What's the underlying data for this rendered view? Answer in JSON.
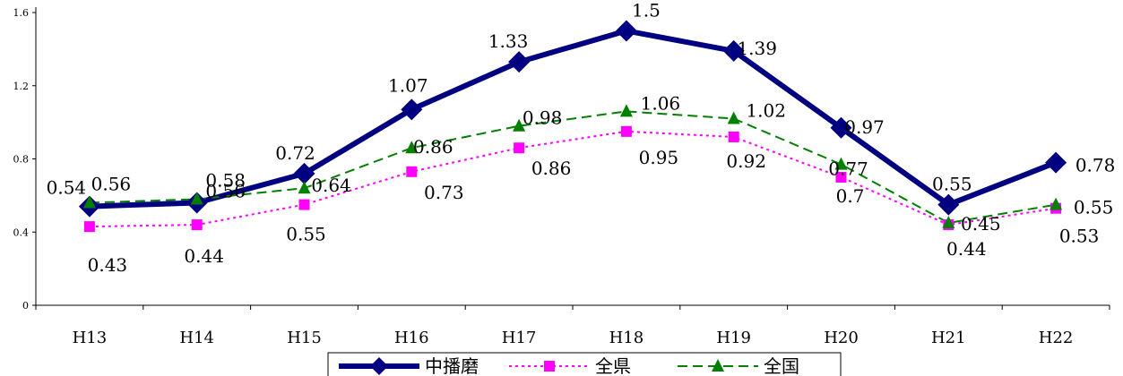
{
  "chart_data": {
    "type": "line",
    "title": "",
    "xlabel": "",
    "ylabel": "",
    "categories": [
      "H13",
      "H14",
      "H15",
      "H16",
      "H17",
      "H18",
      "H19",
      "H20",
      "H21",
      "H22"
    ],
    "ylim": [
      0,
      1.6
    ],
    "yticks": [
      "0",
      "0.4",
      "0.8",
      "1.2",
      "1.6"
    ],
    "grid": false,
    "legend_position": "bottom",
    "series": [
      {
        "name": "中播磨",
        "values": [
          0.54,
          0.56,
          0.72,
          1.07,
          1.33,
          1.5,
          1.39,
          0.97,
          0.55,
          0.78
        ],
        "labels": [
          "0.54",
          "0.56",
          "0.72",
          "1.07",
          "1.33",
          "1.5",
          "1.39",
          "0.97",
          "0.55",
          "0.78"
        ],
        "color": "#000080",
        "marker": "diamond",
        "line_style": "solid"
      },
      {
        "name": "全県",
        "values": [
          0.43,
          0.44,
          0.55,
          0.73,
          0.86,
          0.95,
          0.92,
          0.7,
          0.44,
          0.53
        ],
        "labels": [
          "0.43",
          "0.44",
          "0.55",
          "0.73",
          "0.86",
          "0.95",
          "0.92",
          "0.7",
          "0.44",
          "0.53"
        ],
        "color": "#ff00ff",
        "marker": "square",
        "line_style": "dotted"
      },
      {
        "name": "全国",
        "values": [
          0.56,
          0.58,
          0.64,
          0.86,
          0.98,
          1.06,
          1.02,
          0.77,
          0.45,
          0.55
        ],
        "labels": [
          "0.56",
          "0.58",
          "0.64",
          "0.86",
          "0.98",
          "1.06",
          "1.02",
          "0.77",
          "0.45",
          "0.55"
        ],
        "color": "#008000",
        "marker": "triangle",
        "line_style": "dashed"
      }
    ]
  }
}
